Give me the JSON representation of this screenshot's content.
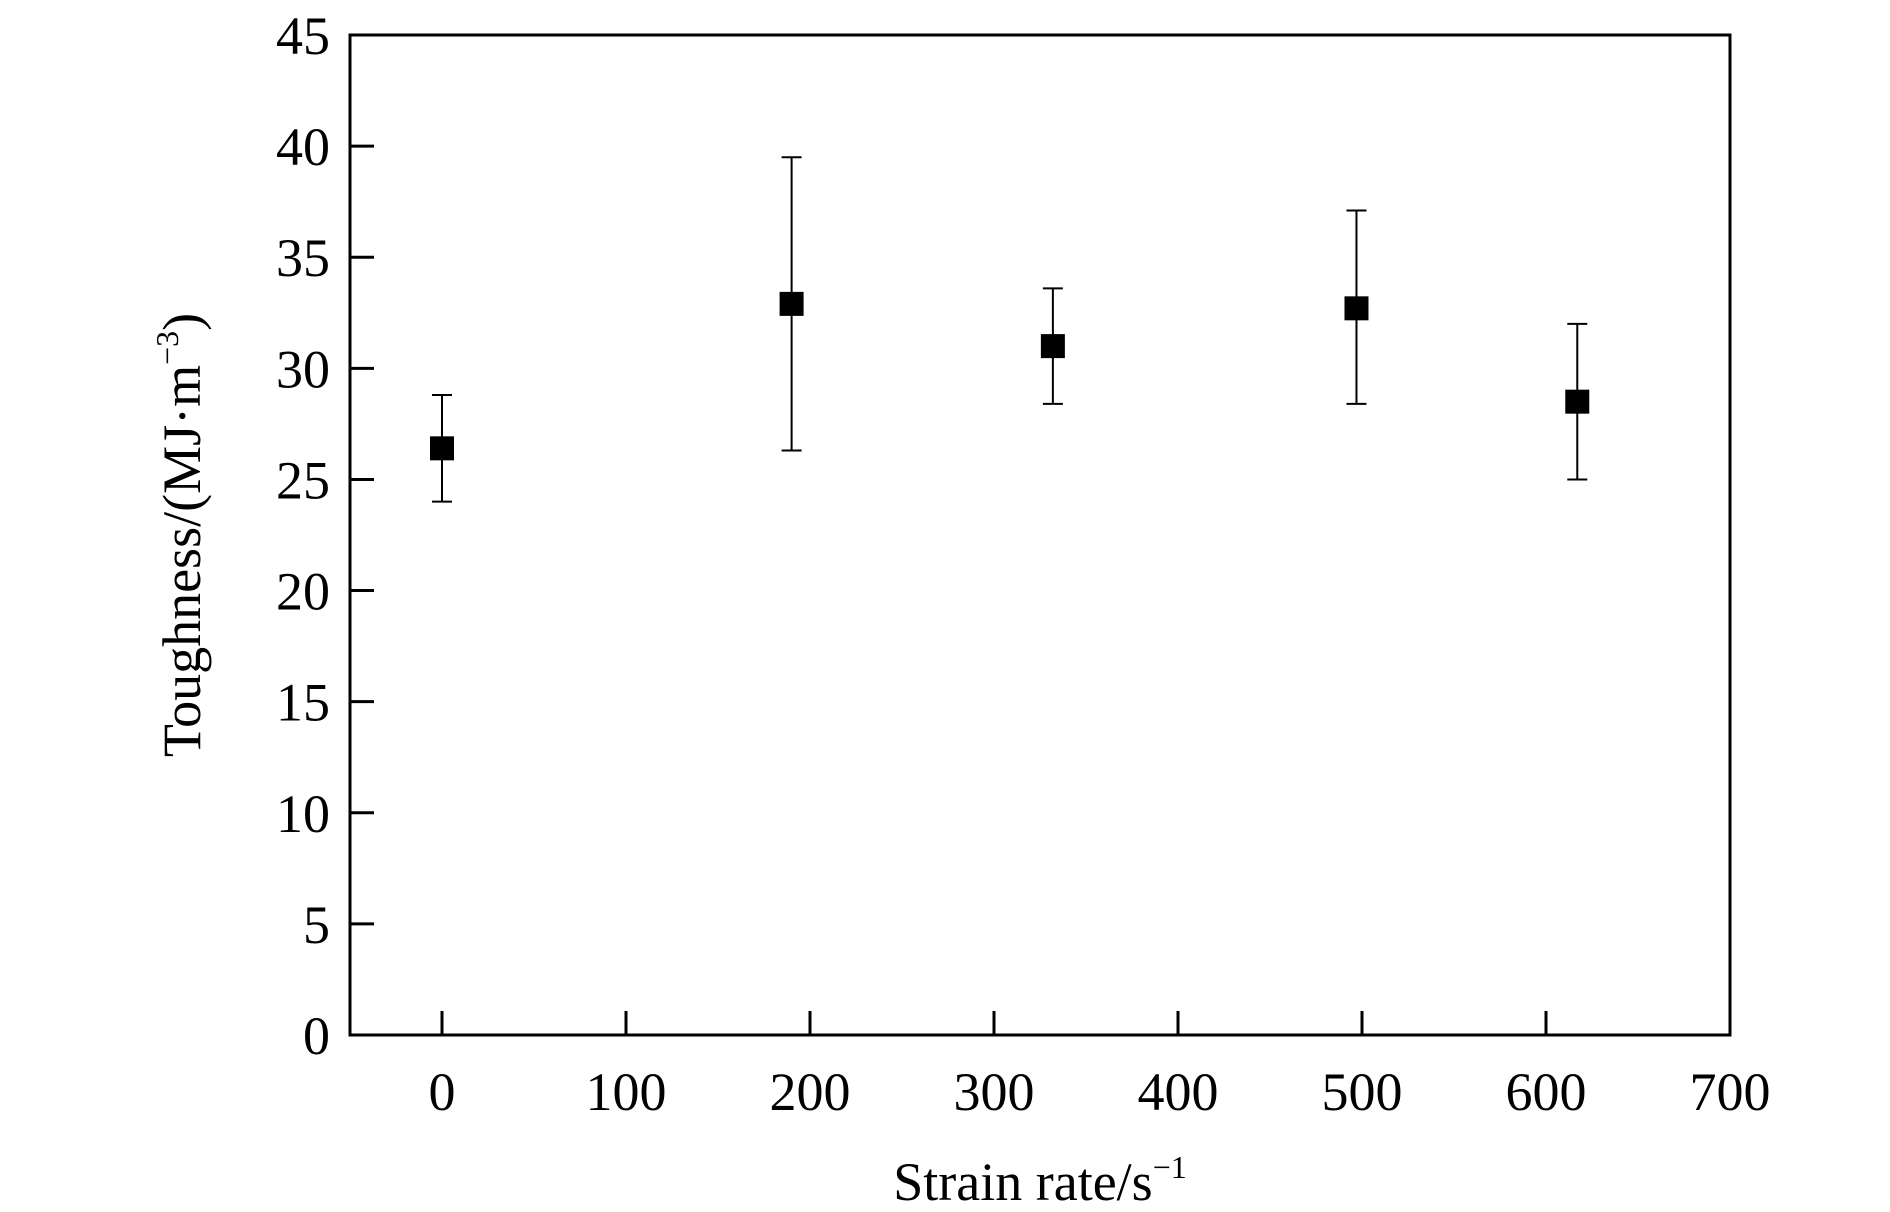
{
  "chart_data": {
    "type": "scatter",
    "xlabel": {
      "base": "Strain rate/s",
      "sup": "−1"
    },
    "ylabel": {
      "pre": "Toughness/(MJ·m",
      "sup": "−3",
      "post": ")"
    },
    "xlim": [
      -50,
      700
    ],
    "ylim": [
      0,
      45
    ],
    "xticks": [
      "0",
      "100",
      "200",
      "300",
      "400",
      "500",
      "600",
      "700"
    ],
    "yticks": [
      "0",
      "5",
      "10",
      "15",
      "20",
      "25",
      "30",
      "35",
      "40",
      "45"
    ],
    "grid": false,
    "marker": "square",
    "color": "#000000",
    "points": [
      {
        "x": 0,
        "y": 26.4,
        "y_low": 24.0,
        "y_high": 28.8
      },
      {
        "x": 190,
        "y": 32.9,
        "y_low": 26.3,
        "y_high": 39.5
      },
      {
        "x": 332,
        "y": 31.0,
        "y_low": 28.4,
        "y_high": 33.6
      },
      {
        "x": 497,
        "y": 32.7,
        "y_low": 28.4,
        "y_high": 37.1
      },
      {
        "x": 617,
        "y": 28.5,
        "y_low": 25.0,
        "y_high": 32.0
      }
    ]
  }
}
